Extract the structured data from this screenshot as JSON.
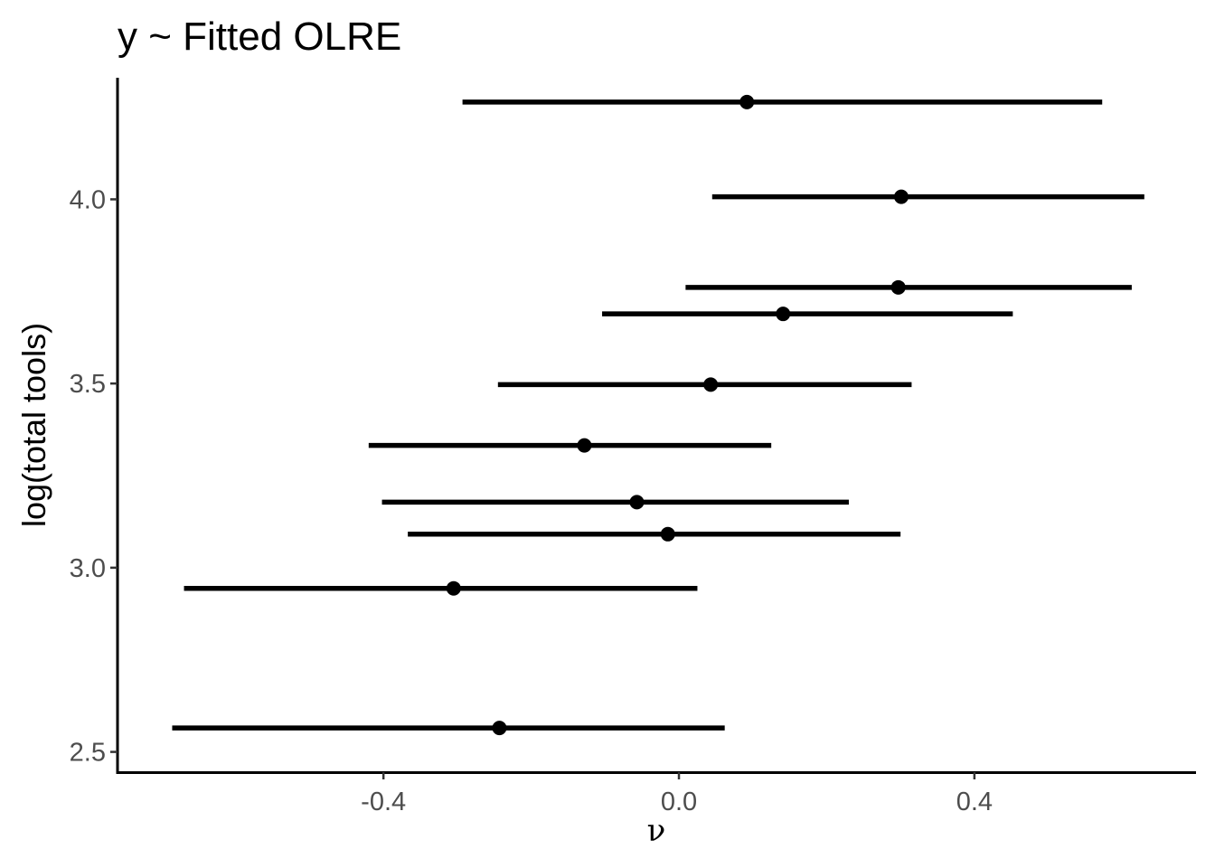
{
  "chart_data": {
    "type": "scatter",
    "title": "y ~ Fitted OLRE",
    "xlabel": "ν",
    "ylabel": "log(total tools)",
    "xlim": [
      -0.76,
      0.7
    ],
    "ylim": [
      2.445,
      4.33
    ],
    "x_ticks": [
      -0.4,
      0.0,
      0.4
    ],
    "x_tick_labels": [
      "-0.4",
      "0.0",
      "0.4"
    ],
    "y_ticks": [
      2.5,
      3.0,
      3.5,
      4.0
    ],
    "y_tick_labels": [
      "2.5",
      "3.0",
      "3.5",
      "4.0"
    ],
    "grid": false,
    "legend": "none",
    "color": "#000000",
    "series": [
      {
        "points": [
          {
            "y": 4.264,
            "estimate": 0.092,
            "lower": -0.293,
            "upper": 0.573
          },
          {
            "y": 4.007,
            "estimate": 0.301,
            "lower": 0.045,
            "upper": 0.63
          },
          {
            "y": 3.761,
            "estimate": 0.297,
            "lower": 0.009,
            "upper": 0.613
          },
          {
            "y": 3.689,
            "estimate": 0.141,
            "lower": -0.104,
            "upper": 0.452
          },
          {
            "y": 3.497,
            "estimate": 0.043,
            "lower": -0.245,
            "upper": 0.315
          },
          {
            "y": 3.332,
            "estimate": -0.128,
            "lower": -0.42,
            "upper": 0.125
          },
          {
            "y": 3.178,
            "estimate": -0.057,
            "lower": -0.402,
            "upper": 0.23
          },
          {
            "y": 3.091,
            "estimate": -0.015,
            "lower": -0.367,
            "upper": 0.3
          },
          {
            "y": 2.944,
            "estimate": -0.305,
            "lower": -0.67,
            "upper": 0.025
          },
          {
            "y": 2.565,
            "estimate": -0.243,
            "lower": -0.686,
            "upper": 0.062
          }
        ]
      }
    ]
  }
}
